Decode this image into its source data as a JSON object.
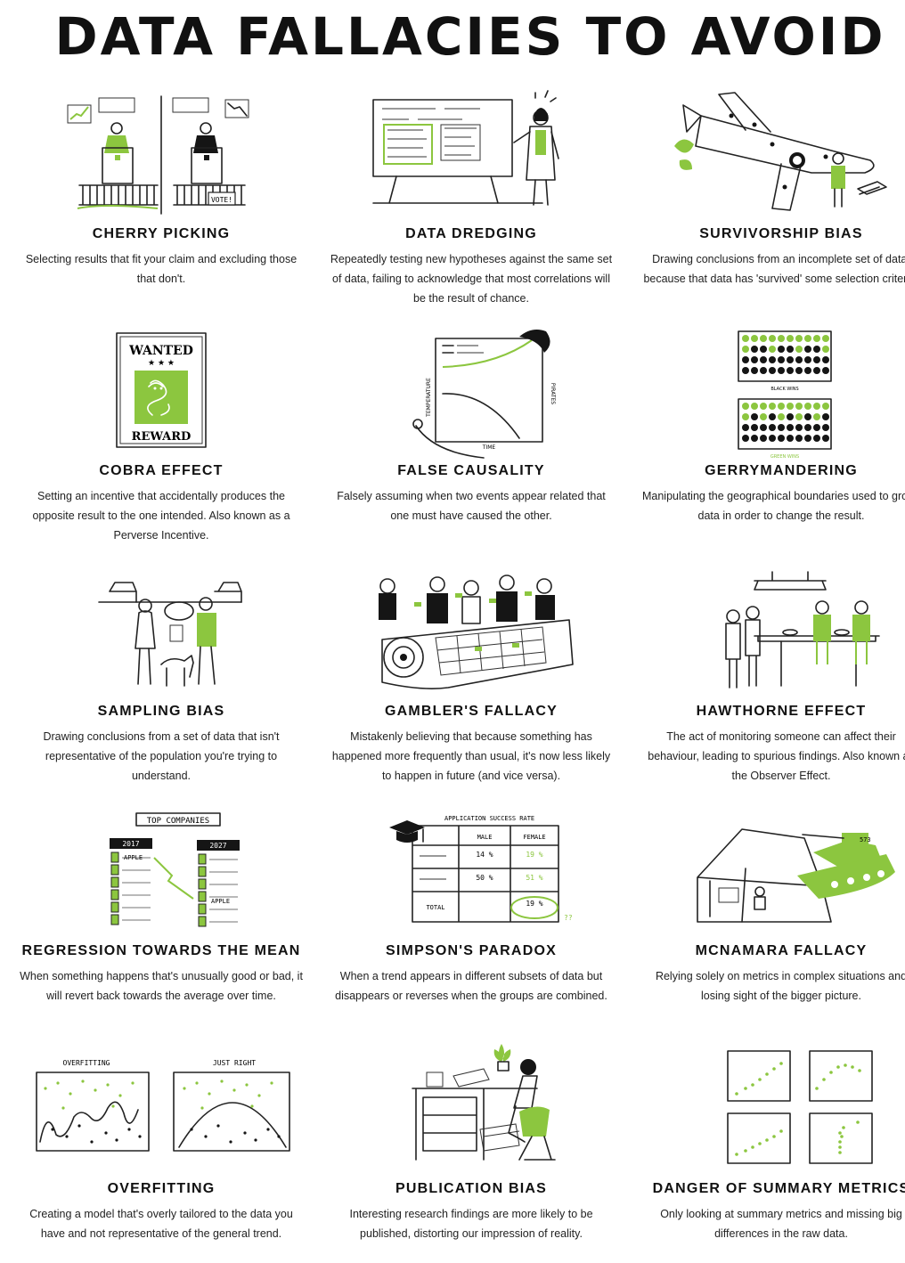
{
  "title": "DATA FALLACIES TO AVOID",
  "colors": {
    "accent": "#8cc63f",
    "ink": "#111111",
    "background": "#ffffff"
  },
  "fallacies": [
    {
      "name": "CHERRY PICKING",
      "description": "Selecting results that fit your claim and excluding those that don't.",
      "illustration_text": [
        "VOTE!"
      ]
    },
    {
      "name": "DATA DREDGING",
      "description": "Repeatedly testing new hypotheses against the same set of data, failing to acknowledge that most correlations will be the result of chance.",
      "illustration_text": []
    },
    {
      "name": "SURVIVORSHIP BIAS",
      "description": "Drawing conclusions from an incomplete set of data, because that data has 'survived' some selection criteria.",
      "illustration_text": []
    },
    {
      "name": "COBRA EFFECT",
      "description": "Setting an incentive that accidentally produces the opposite result to the one intended. Also known as a Perverse Incentive.",
      "illustration_text": [
        "WANTED",
        "REWARD"
      ]
    },
    {
      "name": "FALSE CAUSALITY",
      "description": "Falsely assuming when two events appear related that one must have caused the other.",
      "illustration_text": [
        "TEMPERATURE",
        "PIRATES",
        "TIME"
      ]
    },
    {
      "name": "GERRYMANDERING",
      "description": "Manipulating the geographical boundaries used to group data in order to change the result.",
      "illustration_text": [
        "BLACK WINS",
        "GREEN WINS"
      ]
    },
    {
      "name": "SAMPLING BIAS",
      "description": "Drawing conclusions from a set of data that isn't representative of the population you're trying to understand.",
      "illustration_text": []
    },
    {
      "name": "GAMBLER'S FALLACY",
      "description": "Mistakenly believing that because something has happened more frequently than usual, it's now less likely to happen in future (and vice versa).",
      "illustration_text": []
    },
    {
      "name": "HAWTHORNE EFFECT",
      "description": "The act of monitoring someone can affect their behaviour, leading to spurious findings. Also known as the Observer Effect.",
      "illustration_text": []
    },
    {
      "name": "REGRESSION TOWARDS THE MEAN",
      "description": "When something happens that's unusually good or bad, it will revert back towards the average over time.",
      "illustration_text": [
        "TOP COMPANIES",
        "2017",
        "2027",
        "APPLE",
        "APPLE"
      ]
    },
    {
      "name": "SIMPSON'S PARADOX",
      "description": "When a trend appears in different subsets of data but disappears or reverses when the groups are combined.",
      "illustration_text": [
        "APPLICATION SUCCESS RATE",
        "MALE",
        "FEMALE",
        "TOTAL",
        "14 %",
        "19 %",
        "50 %",
        "51 %",
        "19 %",
        "??"
      ]
    },
    {
      "name": "MCNAMARA FALLACY",
      "description": "Relying solely on metrics in complex situations and losing sight of the bigger picture.",
      "illustration_text": [
        "573"
      ]
    },
    {
      "name": "OVERFITTING",
      "description": "Creating a model that's overly tailored to the data you have and not representative of the general trend.",
      "illustration_text": [
        "OVERFITTING",
        "JUST RIGHT"
      ]
    },
    {
      "name": "PUBLICATION BIAS",
      "description": "Interesting research findings are more likely to be published, distorting our impression of reality.",
      "illustration_text": []
    },
    {
      "name": "DANGER OF SUMMARY METRICS",
      "description": "Only looking at summary metrics and missing big differences in the raw data.",
      "illustration_text": []
    }
  ]
}
